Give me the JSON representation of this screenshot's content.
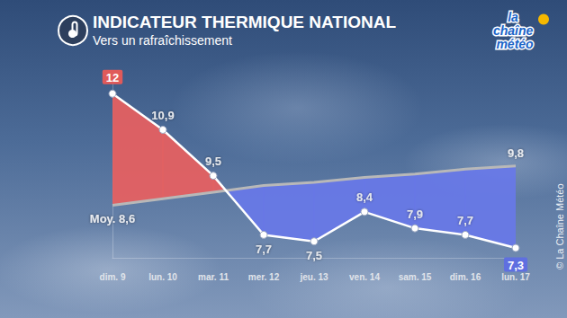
{
  "chart_data": {
    "type": "line",
    "title": "INDICATEUR THERMIQUE NATIONAL",
    "subtitle": "Vers un rafraîchissement",
    "categories": [
      "dim. 9",
      "lun. 10",
      "mar. 11",
      "mer. 12",
      "jeu. 13",
      "ven. 14",
      "sam. 15",
      "dim. 16",
      "lun. 17"
    ],
    "series": [
      {
        "color": "#ffffff",
        "values": [
          12,
          10.9,
          9.5,
          7.7,
          7.5,
          8.4,
          7.9,
          7.7,
          7.3
        ],
        "value_labels": [
          "12",
          "10,9",
          "9,5",
          "7,7",
          "7,5",
          "8,4",
          "7,9",
          "7,7",
          "7,3"
        ]
      },
      {
        "name": "Moy.",
        "color": "#b8b8b8",
        "values": [
          8.6,
          8.8,
          9.0,
          9.2,
          9.3,
          9.45,
          9.55,
          9.7,
          9.8
        ],
        "value_labels": [
          "8,6",
          null,
          null,
          null,
          null,
          null,
          null,
          null,
          "9,8"
        ]
      }
    ],
    "ylim": [
      7,
      12.5
    ],
    "yticks": [],
    "grid": false,
    "data_labels": true,
    "tick_labels": "x"
  },
  "logo": "la chaîne météo",
  "credit": "© La Chaîne Météo"
}
